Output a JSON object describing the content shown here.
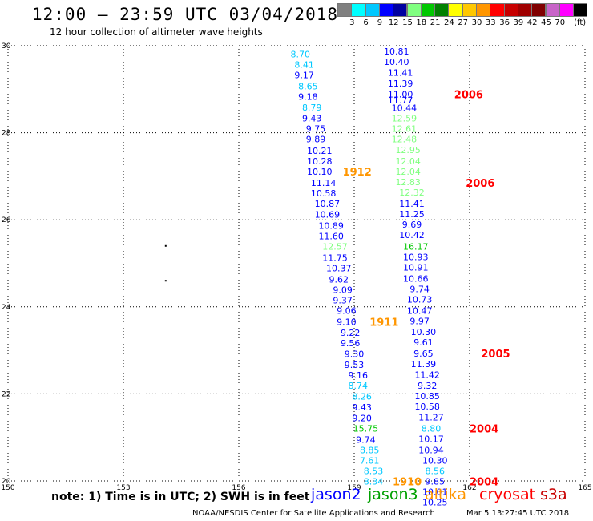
{
  "header": {
    "title": "12:00 – 23:59 UTC 03/04/2018",
    "subtitle": "12 hour collection of altimeter wave heights"
  },
  "colorbar": {
    "colors": [
      "#808080",
      "#00ffff",
      "#00c8ff",
      "#0000ff",
      "#0000a0",
      "#80ff80",
      "#00c800",
      "#008000",
      "#ffff00",
      "#ffc800",
      "#ff9600",
      "#ff0000",
      "#c80000",
      "#a00000",
      "#800000",
      "#c864c8",
      "#ff00ff",
      "#000000"
    ],
    "labels": [
      "3",
      "6",
      "9",
      "12",
      "15",
      "18",
      "21",
      "24",
      "27",
      "30",
      "33",
      "36",
      "39",
      "42",
      "45",
      "70"
    ],
    "unit": "(ft)"
  },
  "footer": {
    "note": "note: 1) Time is in UTC; 2) SWH is in feet",
    "legend": [
      {
        "name": "jason2",
        "color": "#0000ff"
      },
      {
        "name": "jason3",
        "color": "#00a000"
      },
      {
        "name": "altika",
        "color": "#ff9600"
      },
      {
        "name": "cryosat",
        "color": "#ff0000"
      },
      {
        "name": "s3a",
        "color": "#c80000"
      }
    ],
    "credit": "NOAA/NESDIS Center for Satellite Applications and Research",
    "timestamp": "Mar  5 13:27:45 UTC 2018"
  },
  "chart_data": {
    "type": "scatter",
    "xlim": [
      150,
      165
    ],
    "ylim": [
      20,
      30
    ],
    "xticks": [
      "150",
      "153",
      "156",
      "159",
      "162",
      "165"
    ],
    "yticks": [
      "20",
      "22",
      "24",
      "26",
      "28",
      "30"
    ],
    "grid": true,
    "track1": [
      {
        "x": 157.6,
        "y": 29.81,
        "v": "8.70",
        "c": "#00c8ff"
      },
      {
        "x": 157.7,
        "y": 29.57,
        "v": "8.41",
        "c": "#00c8ff"
      },
      {
        "x": 157.7,
        "y": 29.33,
        "v": "9.17",
        "c": "#0000ff"
      },
      {
        "x": 157.8,
        "y": 29.07,
        "v": "8.65",
        "c": "#00c8ff"
      },
      {
        "x": 157.8,
        "y": 28.83,
        "v": "9.18",
        "c": "#0000ff"
      },
      {
        "x": 157.9,
        "y": 28.58,
        "v": "8.79",
        "c": "#00c8ff"
      },
      {
        "x": 157.9,
        "y": 28.33,
        "v": "9.43",
        "c": "#0000ff"
      },
      {
        "x": 158.0,
        "y": 28.09,
        "v": "9.75",
        "c": "#0000ff"
      },
      {
        "x": 158.0,
        "y": 27.85,
        "v": "9.89",
        "c": "#0000ff"
      },
      {
        "x": 158.1,
        "y": 27.59,
        "v": "10.21",
        "c": "#0000ff"
      },
      {
        "x": 158.1,
        "y": 27.35,
        "v": "10.28",
        "c": "#0000ff"
      },
      {
        "x": 158.1,
        "y": 27.11,
        "v": "10.10",
        "c": "#0000ff"
      },
      {
        "x": 158.2,
        "y": 26.85,
        "v": "11.14",
        "c": "#0000ff"
      },
      {
        "x": 158.2,
        "y": 26.61,
        "v": "10.58",
        "c": "#0000ff"
      },
      {
        "x": 158.3,
        "y": 26.37,
        "v": "10.87",
        "c": "#0000ff"
      },
      {
        "x": 158.3,
        "y": 26.12,
        "v": "10.69",
        "c": "#0000ff"
      },
      {
        "x": 158.4,
        "y": 25.87,
        "v": "10.89",
        "c": "#0000ff"
      },
      {
        "x": 158.4,
        "y": 25.63,
        "v": "11.60",
        "c": "#0000ff"
      },
      {
        "x": 158.5,
        "y": 25.39,
        "v": "12.57",
        "c": "#80ff80"
      },
      {
        "x": 158.5,
        "y": 25.13,
        "v": "11.75",
        "c": "#0000ff"
      },
      {
        "x": 158.6,
        "y": 24.89,
        "v": "10.37",
        "c": "#0000ff"
      },
      {
        "x": 158.6,
        "y": 24.63,
        "v": "9.62",
        "c": "#0000ff"
      },
      {
        "x": 158.7,
        "y": 24.39,
        "v": "9.09",
        "c": "#0000ff"
      },
      {
        "x": 158.7,
        "y": 24.15,
        "v": "9.37",
        "c": "#0000ff"
      },
      {
        "x": 158.8,
        "y": 23.91,
        "v": "9.06",
        "c": "#0000ff"
      },
      {
        "x": 158.8,
        "y": 23.66,
        "v": "9.10",
        "c": "#0000ff"
      },
      {
        "x": 158.9,
        "y": 23.41,
        "v": "9.22",
        "c": "#0000ff"
      },
      {
        "x": 158.9,
        "y": 23.17,
        "v": "9.56",
        "c": "#0000ff"
      },
      {
        "x": 159.0,
        "y": 22.92,
        "v": "9.30",
        "c": "#0000ff"
      },
      {
        "x": 159.0,
        "y": 22.67,
        "v": "9.53",
        "c": "#0000ff"
      },
      {
        "x": 159.1,
        "y": 22.43,
        "v": "9.16",
        "c": "#0000ff"
      },
      {
        "x": 159.1,
        "y": 22.19,
        "v": "8.74",
        "c": "#00c8ff"
      },
      {
        "x": 159.2,
        "y": 21.94,
        "v": "8.26",
        "c": "#00c8ff"
      },
      {
        "x": 159.2,
        "y": 21.69,
        "v": "9.43",
        "c": "#0000ff"
      },
      {
        "x": 159.2,
        "y": 21.45,
        "v": "9.20",
        "c": "#0000ff"
      },
      {
        "x": 159.3,
        "y": 21.21,
        "v": "15.75",
        "c": "#00c800"
      },
      {
        "x": 159.3,
        "y": 20.95,
        "v": "9.74",
        "c": "#0000ff"
      },
      {
        "x": 159.4,
        "y": 20.71,
        "v": "8.85",
        "c": "#00c8ff"
      },
      {
        "x": 159.4,
        "y": 20.47,
        "v": "7.61",
        "c": "#00c8ff"
      },
      {
        "x": 159.5,
        "y": 20.23,
        "v": "8.53",
        "c": "#00c8ff"
      },
      {
        "x": 159.5,
        "y": 19.99,
        "v": "8.34",
        "c": "#00c8ff"
      }
    ],
    "track2": [
      {
        "x": 160.1,
        "y": 29.87,
        "v": "10.81",
        "c": "#0000ff"
      },
      {
        "x": 160.1,
        "y": 29.63,
        "v": "10.40",
        "c": "#0000ff"
      },
      {
        "x": 160.2,
        "y": 29.38,
        "v": "11.41",
        "c": "#0000ff"
      },
      {
        "x": 160.2,
        "y": 29.13,
        "v": "11.39",
        "c": "#0000ff"
      },
      {
        "x": 160.2,
        "y": 28.89,
        "v": "11.00",
        "c": "#0000ff"
      },
      {
        "x": 160.2,
        "y": 28.75,
        "v": "11.77",
        "c": "#0000ff"
      },
      {
        "x": 160.3,
        "y": 28.57,
        "v": "10.44",
        "c": "#0000ff"
      },
      {
        "x": 160.3,
        "y": 28.33,
        "v": "12.59",
        "c": "#80ff80"
      },
      {
        "x": 160.3,
        "y": 28.09,
        "v": "12.61",
        "c": "#80ff80"
      },
      {
        "x": 160.3,
        "y": 27.85,
        "v": "12.48",
        "c": "#80ff80"
      },
      {
        "x": 160.4,
        "y": 27.61,
        "v": "12.95",
        "c": "#80ff80"
      },
      {
        "x": 160.4,
        "y": 27.35,
        "v": "12.04",
        "c": "#80ff80"
      },
      {
        "x": 160.4,
        "y": 27.11,
        "v": "12.04",
        "c": "#80ff80"
      },
      {
        "x": 160.4,
        "y": 26.87,
        "v": "12.83",
        "c": "#80ff80"
      },
      {
        "x": 160.5,
        "y": 26.63,
        "v": "12.32",
        "c": "#80ff80"
      },
      {
        "x": 160.5,
        "y": 26.37,
        "v": "11.41",
        "c": "#0000ff"
      },
      {
        "x": 160.5,
        "y": 26.13,
        "v": "11.25",
        "c": "#0000ff"
      },
      {
        "x": 160.5,
        "y": 25.89,
        "v": "9.69",
        "c": "#0000ff"
      },
      {
        "x": 160.5,
        "y": 25.65,
        "v": "10.42",
        "c": "#0000ff"
      },
      {
        "x": 160.6,
        "y": 25.39,
        "v": "16.17",
        "c": "#00c800"
      },
      {
        "x": 160.6,
        "y": 25.15,
        "v": "10.93",
        "c": "#0000ff"
      },
      {
        "x": 160.6,
        "y": 24.91,
        "v": "10.91",
        "c": "#0000ff"
      },
      {
        "x": 160.6,
        "y": 24.65,
        "v": "10.66",
        "c": "#0000ff"
      },
      {
        "x": 160.7,
        "y": 24.41,
        "v": "9.74",
        "c": "#0000ff"
      },
      {
        "x": 160.7,
        "y": 24.17,
        "v": "10.73",
        "c": "#0000ff"
      },
      {
        "x": 160.7,
        "y": 23.91,
        "v": "10.47",
        "c": "#0000ff"
      },
      {
        "x": 160.7,
        "y": 23.67,
        "v": "9.97",
        "c": "#0000ff"
      },
      {
        "x": 160.8,
        "y": 23.43,
        "v": "10.30",
        "c": "#0000ff"
      },
      {
        "x": 160.8,
        "y": 23.19,
        "v": "9.61",
        "c": "#0000ff"
      },
      {
        "x": 160.8,
        "y": 22.93,
        "v": "9.65",
        "c": "#0000ff"
      },
      {
        "x": 160.8,
        "y": 22.69,
        "v": "11.39",
        "c": "#0000ff"
      },
      {
        "x": 160.9,
        "y": 22.44,
        "v": "11.42",
        "c": "#0000ff"
      },
      {
        "x": 160.9,
        "y": 22.19,
        "v": "9.32",
        "c": "#0000ff"
      },
      {
        "x": 160.9,
        "y": 21.95,
        "v": "10.85",
        "c": "#0000ff"
      },
      {
        "x": 160.9,
        "y": 21.71,
        "v": "10.58",
        "c": "#0000ff"
      },
      {
        "x": 161.0,
        "y": 21.46,
        "v": "11.27",
        "c": "#0000ff"
      },
      {
        "x": 161.0,
        "y": 21.21,
        "v": "8.80",
        "c": "#00c8ff"
      },
      {
        "x": 161.0,
        "y": 20.97,
        "v": "10.17",
        "c": "#0000ff"
      },
      {
        "x": 161.0,
        "y": 20.71,
        "v": "10.94",
        "c": "#0000ff"
      },
      {
        "x": 161.1,
        "y": 20.47,
        "v": "10.30",
        "c": "#0000ff"
      },
      {
        "x": 161.1,
        "y": 20.23,
        "v": "8.56",
        "c": "#00c8ff"
      },
      {
        "x": 161.1,
        "y": 19.99,
        "v": "9.85",
        "c": "#0000ff"
      },
      {
        "x": 161.1,
        "y": 19.75,
        "v": "10.01",
        "c": "#0000ff"
      },
      {
        "x": 161.1,
        "y": 19.51,
        "v": "10.25",
        "c": "#0000ff"
      }
    ],
    "annotations": [
      {
        "x": 161.6,
        "y": 28.89,
        "text": "2006",
        "color": "#ff0000"
      },
      {
        "x": 161.9,
        "y": 26.85,
        "text": "2006",
        "color": "#ff0000"
      },
      {
        "x": 158.7,
        "y": 27.11,
        "text": "1912",
        "color": "#ff9600"
      },
      {
        "x": 159.4,
        "y": 23.66,
        "text": "1911",
        "color": "#ff9600"
      },
      {
        "x": 162.3,
        "y": 22.93,
        "text": "2005",
        "color": "#ff0000"
      },
      {
        "x": 162.0,
        "y": 21.21,
        "text": "2004",
        "color": "#ff0000"
      },
      {
        "x": 162.0,
        "y": 19.99,
        "text": "2004",
        "color": "#ff0000"
      },
      {
        "x": 160.0,
        "y": 19.99,
        "text": "1910",
        "color": "#ff9600"
      }
    ],
    "markers": [
      {
        "x": 154.1,
        "y": 25.4
      },
      {
        "x": 154.1,
        "y": 24.6
      }
    ]
  }
}
